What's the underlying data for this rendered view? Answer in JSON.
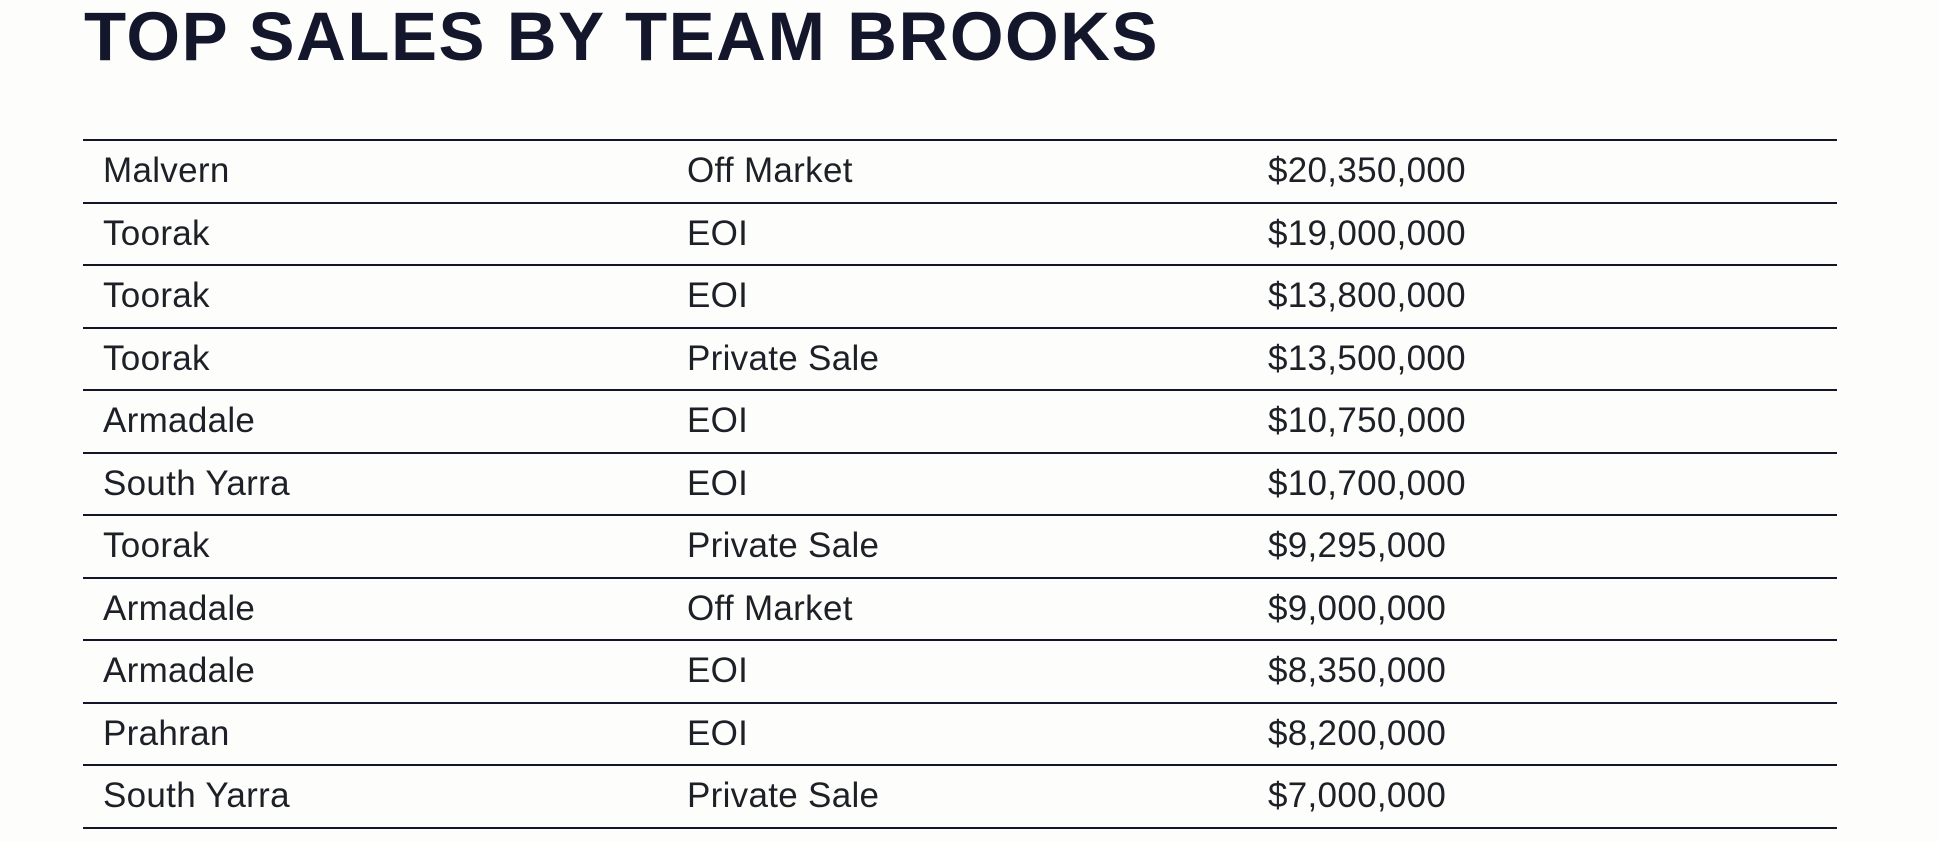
{
  "page": {
    "title": "TOP SALES BY TEAM BROOKS"
  },
  "colors": {
    "title": "#14172b",
    "body_text": "#1e2027",
    "rule": "#131629",
    "background": "#fdfdfc"
  },
  "table": {
    "columns": [
      "suburb",
      "sale_method",
      "price"
    ],
    "rows": [
      {
        "suburb": "Malvern",
        "method": "Off Market",
        "price": "$20,350,000"
      },
      {
        "suburb": "Toorak",
        "method": "EOI",
        "price": "$19,000,000"
      },
      {
        "suburb": "Toorak",
        "method": "EOI",
        "price": "$13,800,000"
      },
      {
        "suburb": "Toorak",
        "method": "Private Sale",
        "price": "$13,500,000"
      },
      {
        "suburb": "Armadale",
        "method": "EOI",
        "price": "$10,750,000"
      },
      {
        "suburb": "South Yarra",
        "method": "EOI",
        "price": "$10,700,000"
      },
      {
        "suburb": "Toorak",
        "method": "Private Sale",
        "price": "$9,295,000"
      },
      {
        "suburb": "Armadale",
        "method": "Off Market",
        "price": "$9,000,000"
      },
      {
        "suburb": "Armadale",
        "method": "EOI",
        "price": "$8,350,000"
      },
      {
        "suburb": "Prahran",
        "method": "EOI",
        "price": "$8,200,000"
      },
      {
        "suburb": "South Yarra",
        "method": "Private Sale",
        "price": "$7,000,000"
      }
    ]
  }
}
